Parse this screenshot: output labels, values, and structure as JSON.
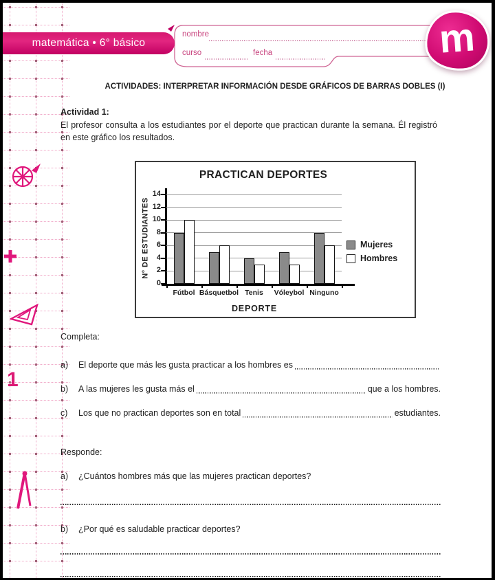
{
  "header": {
    "course_banner": "matemática • 6° básico",
    "logo_letter": "m",
    "name_label": "nombre",
    "course_label": "curso",
    "date_label": "fecha"
  },
  "margin": {
    "page_number": "1",
    "icons": [
      "pie-slice-icon",
      "plus-icon",
      "set-square-icon",
      "compass-icon"
    ]
  },
  "content": {
    "main_title": "ACTIVIDADES: INTERPRETAR INFORMACIÓN DESDE GRÁFICOS DE BARRAS DOBLES (I)",
    "activity_label": "Actividad 1:",
    "activity_text": "El profesor consulta a los estudiantes por el deporte que practican durante la semana. Él registró en este gráfico los resultados.",
    "completa": {
      "label": "Completa:",
      "items": [
        {
          "letter": "a)",
          "text": "El deporte que más les gusta practicar a los hombres es",
          "suffix": ""
        },
        {
          "letter": "b)",
          "text": "A las mujeres les gusta más el",
          "suffix": "que a los hombres."
        },
        {
          "letter": "c)",
          "text": "Los que no practican deportes son en total",
          "suffix": "estudiantes."
        }
      ]
    },
    "responde": {
      "label": "Responde:",
      "items": [
        {
          "letter": "a)",
          "text": "¿Cuántos hombres más que las mujeres practican deportes?"
        },
        {
          "letter": "b)",
          "text": "¿Por qué es saludable practicar deportes?"
        }
      ]
    }
  },
  "chart_data": {
    "type": "bar",
    "title": "PRACTICAN DEPORTES",
    "xlabel": "DEPORTE",
    "ylabel": "N° DE ESTUDIANTES",
    "categories": [
      "Fútbol",
      "Básquetbol",
      "Tenis",
      "Vóleybol",
      "Ninguno"
    ],
    "series": [
      {
        "name": "Mujeres",
        "color": "#8a8a8a",
        "values": [
          8,
          5,
          4,
          5,
          8
        ]
      },
      {
        "name": "Hombres",
        "color": "#ffffff",
        "values": [
          10,
          6,
          3,
          3,
          6
        ]
      }
    ],
    "ylim": [
      0,
      14
    ],
    "ytick_step": 2,
    "grid": true,
    "legend_position": "right"
  },
  "colors": {
    "brand_magenta": "#d40a6e",
    "margin_line_pink": "#f0a6c6",
    "margin_dot": "#a2647a",
    "bar_gray": "#8a8a8a",
    "text_black": "#1f1f1f"
  }
}
